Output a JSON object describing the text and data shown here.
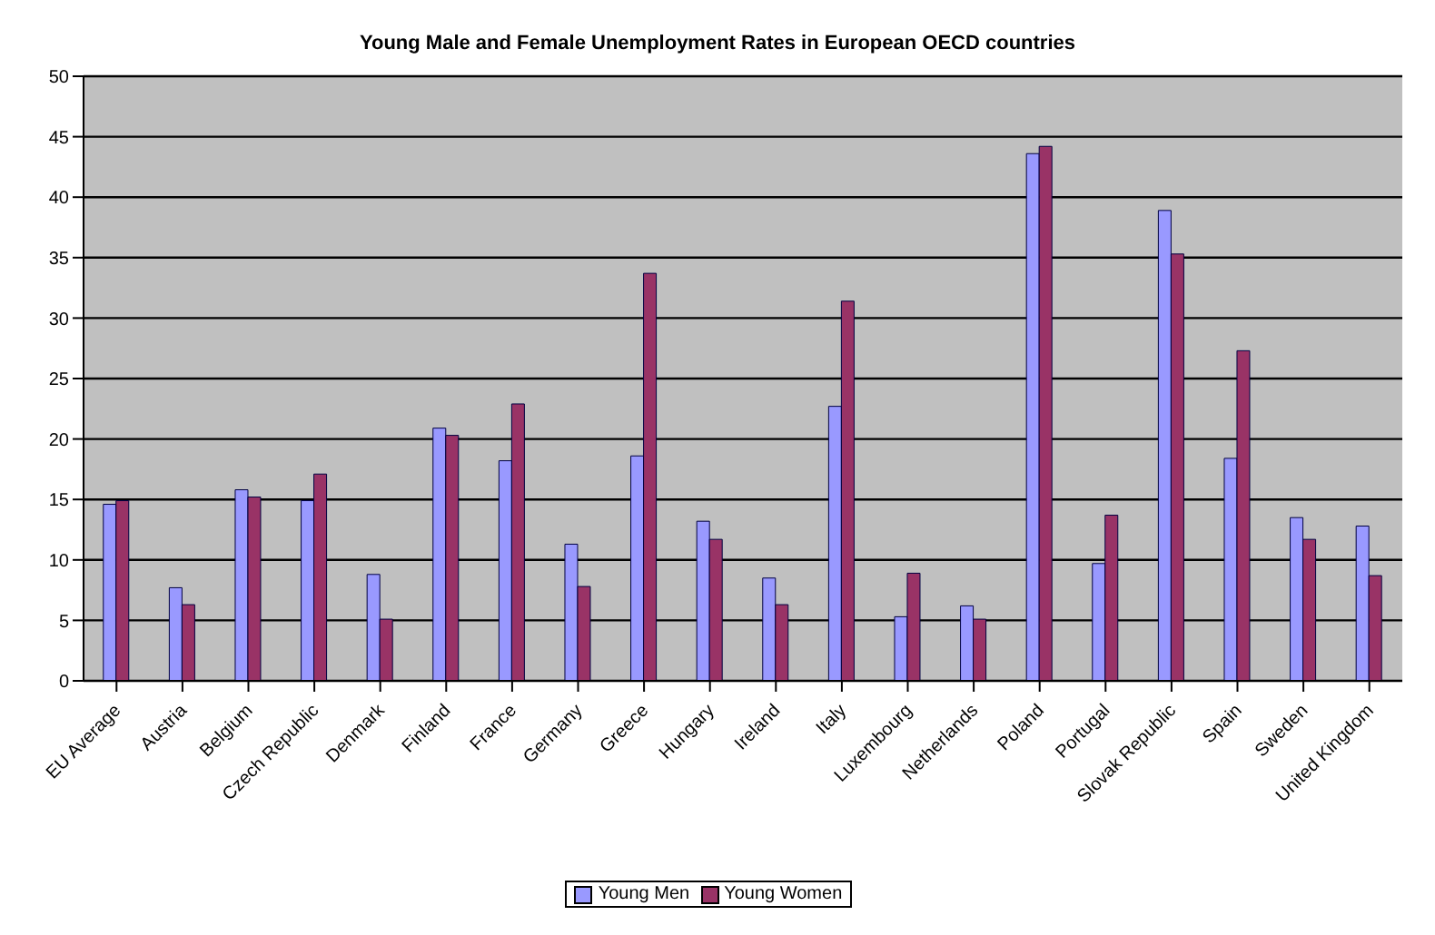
{
  "chart_data": {
    "type": "bar",
    "title": "Young Male and Female Unemployment Rates in European OECD countries",
    "categories": [
      "EU Average",
      "Austria",
      "Belgium",
      "Czech Republic",
      "Denmark",
      "Finland",
      "France",
      "Germany",
      "Greece",
      "Hungary",
      "Ireland",
      "Italy",
      "Luxembourg",
      "Netherlands",
      "Poland",
      "Portugal",
      "Slovak Republic",
      "Spain",
      "Sweden",
      "United Kingdom"
    ],
    "series": [
      {
        "name": "Young Men",
        "color": "#9999ff",
        "values": [
          14.6,
          7.7,
          15.8,
          14.9,
          8.8,
          20.9,
          18.2,
          11.3,
          18.6,
          13.2,
          8.5,
          22.7,
          5.3,
          6.2,
          43.6,
          9.7,
          38.9,
          18.4,
          13.5,
          12.8
        ]
      },
      {
        "name": "Young Women",
        "color": "#993366",
        "values": [
          14.9,
          6.3,
          15.2,
          17.1,
          5.1,
          20.3,
          22.9,
          7.8,
          33.7,
          11.7,
          6.3,
          31.4,
          8.9,
          5.1,
          44.2,
          13.7,
          35.3,
          27.3,
          11.7,
          8.7
        ]
      }
    ],
    "ylim": [
      0,
      50
    ],
    "yticks": [
      0,
      5,
      10,
      15,
      20,
      25,
      30,
      35,
      40,
      45,
      50
    ],
    "grid": "y",
    "legend": "bottom"
  }
}
